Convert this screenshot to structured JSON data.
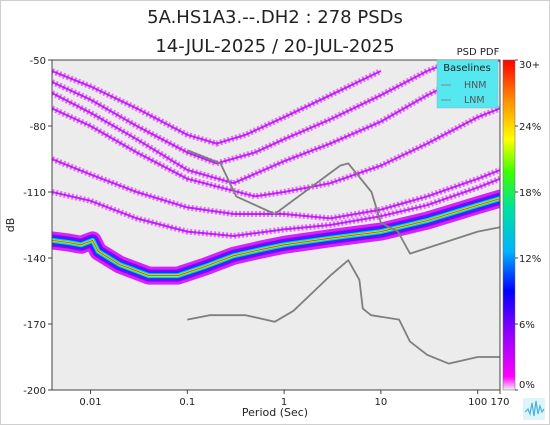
{
  "chart_data": {
    "type": "heatmap",
    "title": "5A.HS1A3.--.DH2 : 278 PSDs",
    "subtitle": "14-JUL-2025 / 20-JUL-2025",
    "xlabel": "Period (Sec)",
    "ylabel": "dB",
    "xscale": "log",
    "xlim": [
      0.004,
      170
    ],
    "ylim": [
      -200,
      -50
    ],
    "xticks": [
      {
        "value": 0.01,
        "label": "0.01"
      },
      {
        "value": 0.1,
        "label": "0.1"
      },
      {
        "value": 1,
        "label": "1"
      },
      {
        "value": 10,
        "label": "10"
      },
      {
        "value": 100,
        "label": "100"
      },
      {
        "value": 170,
        "label": "170"
      }
    ],
    "yticks": [
      {
        "value": -50,
        "label": "-50"
      },
      {
        "value": -80,
        "label": "-80"
      },
      {
        "value": -110,
        "label": "-110"
      },
      {
        "value": -140,
        "label": "-140"
      },
      {
        "value": -170,
        "label": "-170"
      },
      {
        "value": -200,
        "label": "-200"
      }
    ],
    "colorbar": {
      "title": "PSD PDF",
      "ticks": [
        "30+",
        "24%",
        "18%",
        "12%",
        "6%",
        "0%"
      ],
      "range": [
        0,
        30
      ]
    },
    "legend": {
      "title": "Baselines",
      "entries": [
        "HNM",
        "LNM"
      ],
      "placement": "top-right"
    },
    "density_ridges": [
      {
        "points": [
          [
            0.004,
            -132
          ],
          [
            0.006,
            -133
          ],
          [
            0.008,
            -134
          ],
          [
            0.0105,
            -132
          ],
          [
            0.012,
            -137
          ],
          [
            0.02,
            -143
          ],
          [
            0.04,
            -148
          ],
          [
            0.08,
            -148
          ],
          [
            0.15,
            -144
          ],
          [
            0.3,
            -139
          ],
          [
            0.6,
            -136
          ],
          [
            1,
            -134
          ],
          [
            3,
            -131
          ],
          [
            10,
            -128
          ],
          [
            30,
            -123
          ],
          [
            100,
            -116
          ],
          [
            170,
            -113
          ]
        ],
        "weight": 1.0
      },
      {
        "points": [
          [
            0.004,
            -60
          ],
          [
            0.01,
            -68
          ],
          [
            0.03,
            -80
          ],
          [
            0.1,
            -92
          ],
          [
            0.2,
            -97
          ],
          [
            0.5,
            -92
          ],
          [
            1,
            -86
          ],
          [
            3,
            -77
          ],
          [
            10,
            -66
          ],
          [
            30,
            -55
          ],
          [
            60,
            -50
          ]
        ],
        "weight": 0.22
      },
      {
        "points": [
          [
            0.004,
            -65
          ],
          [
            0.01,
            -74
          ],
          [
            0.03,
            -86
          ],
          [
            0.1,
            -100
          ],
          [
            0.3,
            -106
          ],
          [
            1,
            -96
          ],
          [
            3,
            -88
          ],
          [
            10,
            -78
          ],
          [
            30,
            -66
          ],
          [
            100,
            -55
          ],
          [
            170,
            -50
          ]
        ],
        "weight": 0.22
      },
      {
        "points": [
          [
            0.004,
            -72
          ],
          [
            0.01,
            -80
          ],
          [
            0.03,
            -92
          ],
          [
            0.1,
            -104
          ],
          [
            0.5,
            -112
          ],
          [
            1,
            -110
          ],
          [
            3,
            -106
          ],
          [
            10,
            -98
          ],
          [
            30,
            -88
          ],
          [
            100,
            -76
          ],
          [
            170,
            -72
          ]
        ],
        "weight": 0.2
      },
      {
        "points": [
          [
            0.004,
            -95
          ],
          [
            0.01,
            -102
          ],
          [
            0.03,
            -110
          ],
          [
            0.1,
            -117
          ],
          [
            0.3,
            -120
          ],
          [
            1,
            -120
          ],
          [
            3,
            -122
          ],
          [
            10,
            -118
          ],
          [
            30,
            -112
          ],
          [
            100,
            -104
          ],
          [
            170,
            -100
          ]
        ],
        "weight": 0.2
      },
      {
        "points": [
          [
            0.004,
            -110
          ],
          [
            0.01,
            -114
          ],
          [
            0.03,
            -122
          ],
          [
            0.1,
            -128
          ],
          [
            0.3,
            -130
          ],
          [
            1,
            -127
          ],
          [
            3,
            -125
          ],
          [
            10,
            -121
          ],
          [
            30,
            -116
          ],
          [
            100,
            -108
          ],
          [
            170,
            -104
          ]
        ],
        "weight": 0.25
      },
      {
        "points": [
          [
            0.004,
            -55
          ],
          [
            0.01,
            -62
          ],
          [
            0.03,
            -72
          ],
          [
            0.1,
            -84
          ],
          [
            0.2,
            -88
          ],
          [
            0.4,
            -84
          ],
          [
            1,
            -76
          ],
          [
            3,
            -66
          ],
          [
            10,
            -55
          ]
        ],
        "weight": 0.18
      }
    ],
    "reference_lines": [
      {
        "name": "HNM",
        "points": [
          [
            0.1,
            -91
          ],
          [
            0.22,
            -97
          ],
          [
            0.32,
            -112
          ],
          [
            0.8,
            -120
          ],
          [
            3.8,
            -98
          ],
          [
            4.6,
            -97
          ],
          [
            8,
            -110
          ],
          [
            10,
            -124
          ],
          [
            15,
            -128
          ],
          [
            20,
            -138
          ],
          [
            100,
            -128
          ],
          [
            170,
            -126
          ]
        ]
      },
      {
        "name": "LNM",
        "points": [
          [
            0.1,
            -168
          ],
          [
            0.17,
            -166
          ],
          [
            0.4,
            -166
          ],
          [
            0.8,
            -169
          ],
          [
            1.25,
            -164
          ],
          [
            3,
            -148
          ],
          [
            4.6,
            -141
          ],
          [
            6,
            -150
          ],
          [
            6.5,
            -163
          ],
          [
            7.9,
            -166
          ],
          [
            15.4,
            -168
          ],
          [
            20,
            -178
          ],
          [
            30,
            -184
          ],
          [
            50,
            -188
          ],
          [
            100,
            -185
          ],
          [
            170,
            -185
          ]
        ]
      }
    ],
    "grid": false
  }
}
